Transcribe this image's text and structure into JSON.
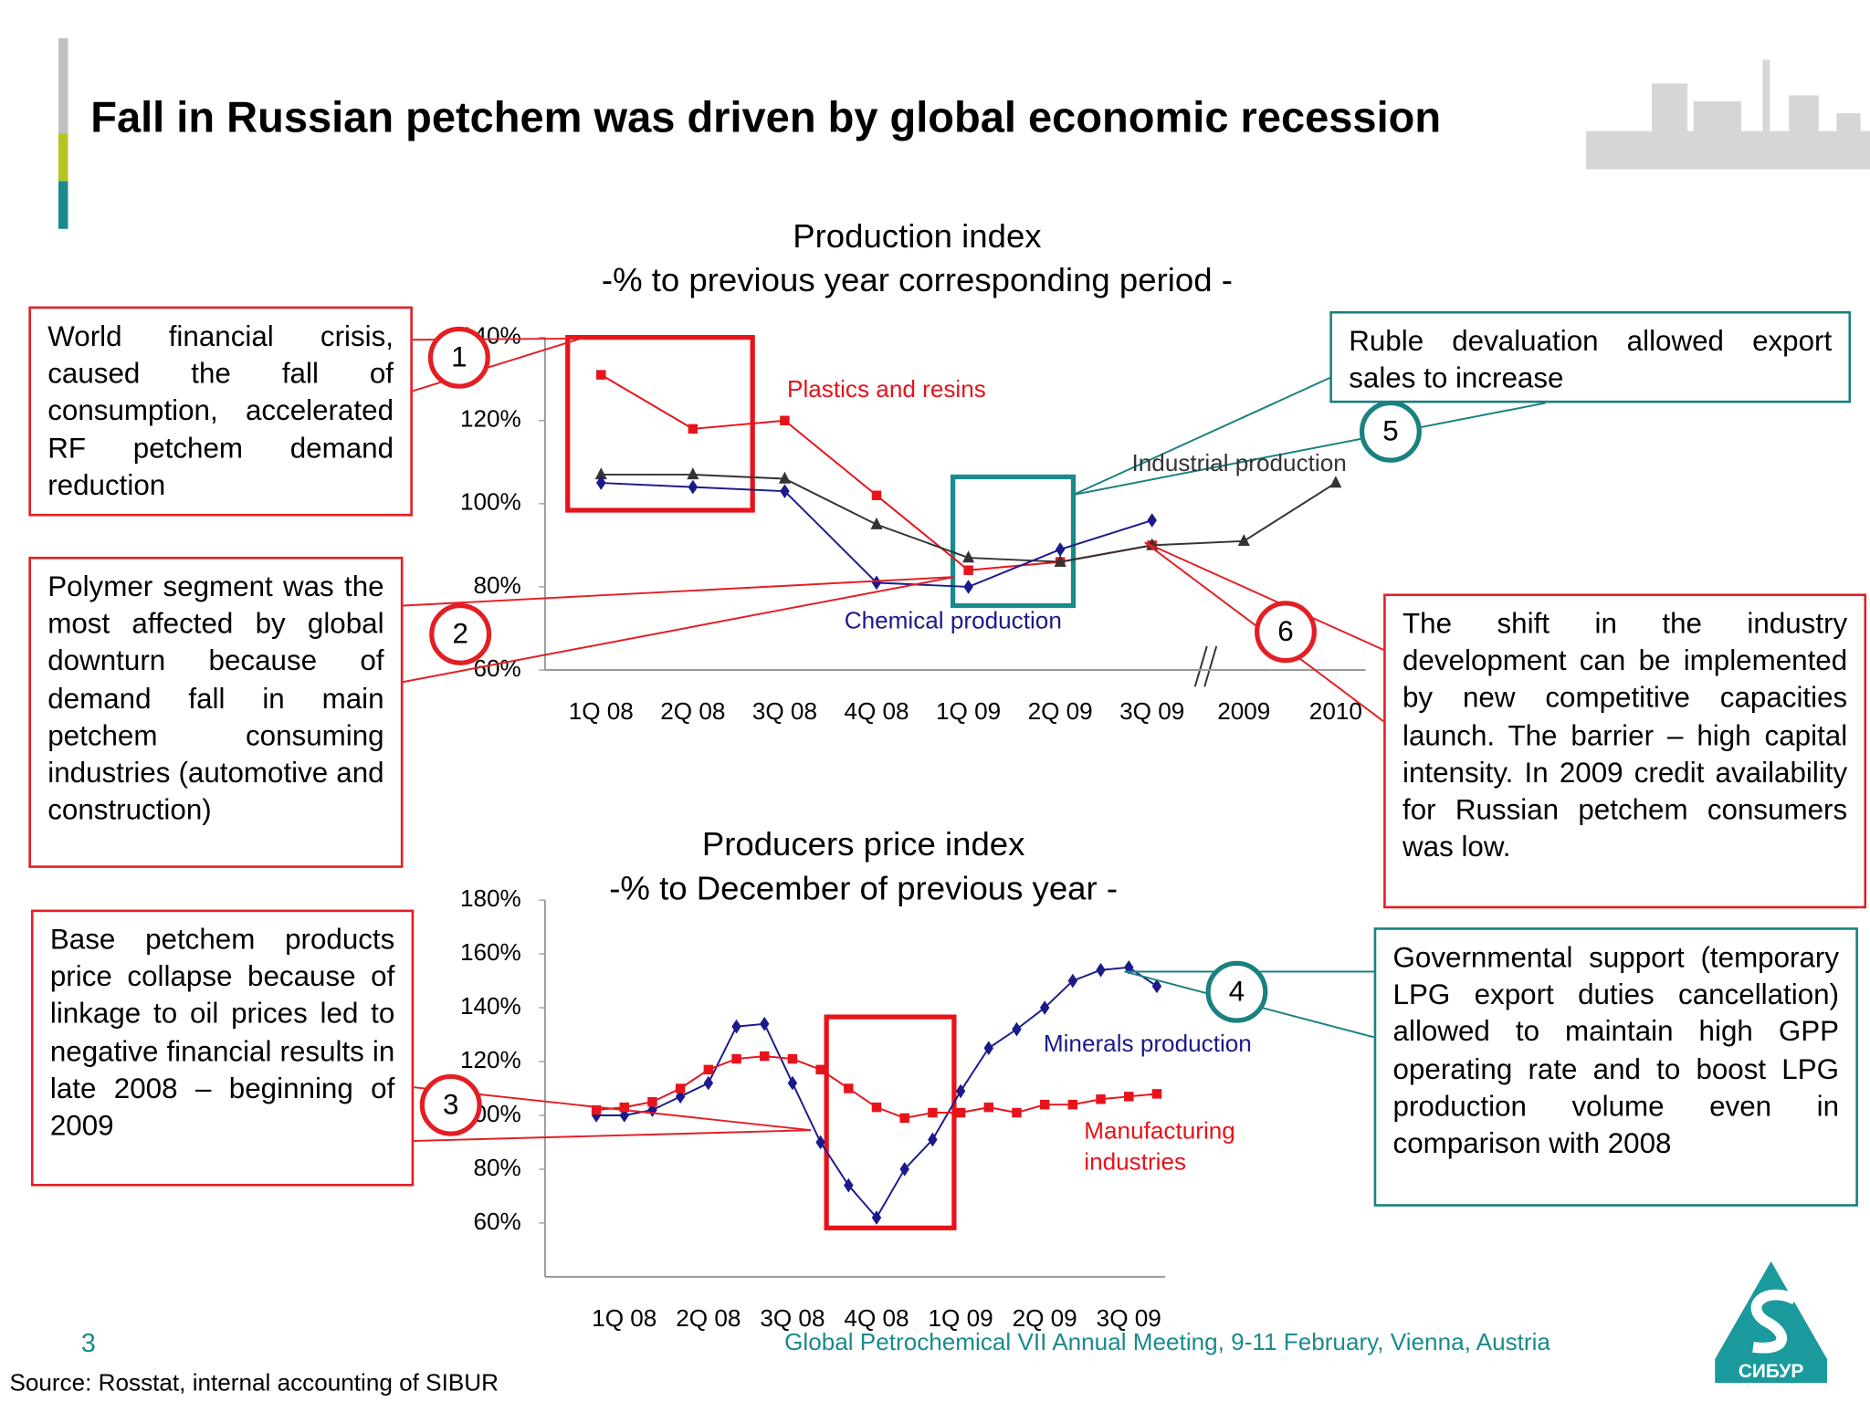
{
  "title": "Fall in Russian petchem was driven by global economic recession",
  "chart_data": [
    {
      "type": "line",
      "title": "Production index",
      "subtitle": "-% to previous year corresponding period -",
      "categories": [
        "1Q 08",
        "2Q 08",
        "3Q 08",
        "4Q 08",
        "1Q 09",
        "2Q 09",
        "3Q 09",
        "2009",
        "2010"
      ],
      "ylim": [
        60,
        140
      ],
      "yticks": [
        {
          "value": 60,
          "label": "60%"
        },
        {
          "value": 80,
          "label": "80%"
        },
        {
          "value": 100,
          "label": "100%"
        },
        {
          "value": 120,
          "label": "120%"
        },
        {
          "value": 140,
          "label": "140%"
        }
      ],
      "series": [
        {
          "name": "Plastics and resins",
          "color": "#e8121a",
          "marker": "square",
          "values": [
            131,
            118,
            120,
            102,
            84,
            86,
            90,
            null,
            null
          ]
        },
        {
          "name": "Industrial production",
          "color": "#333333",
          "marker": "triangle",
          "values": [
            107,
            107,
            106,
            95,
            87,
            86,
            90,
            91,
            105
          ]
        },
        {
          "name": "Chemical production",
          "color": "#1a1a8c",
          "marker": "diamond",
          "values": [
            105,
            104,
            103,
            81,
            80,
            89,
            96,
            null,
            null
          ]
        }
      ]
    },
    {
      "type": "line",
      "title": "Producers price index",
      "subtitle": "-% to December of previous year -",
      "categories": [
        null,
        "1Q 08",
        null,
        null,
        "2Q 08",
        null,
        null,
        "3Q 08",
        null,
        null,
        "4Q 08",
        null,
        null,
        "1Q 09",
        null,
        null,
        "2Q 09",
        null,
        null,
        "3Q 09",
        null
      ],
      "ylim": [
        40,
        180
      ],
      "yticks": [
        {
          "value": 60,
          "label": "60%"
        },
        {
          "value": 80,
          "label": "80%"
        },
        {
          "value": 100,
          "label": "100%"
        },
        {
          "value": 120,
          "label": "120%"
        },
        {
          "value": 140,
          "label": "140%"
        },
        {
          "value": 160,
          "label": "160%"
        },
        {
          "value": 180,
          "label": "180%"
        }
      ],
      "series": [
        {
          "name": "Minerals production",
          "color": "#1a1a8c",
          "marker": "diamond",
          "values": [
            100,
            100,
            102,
            107,
            112,
            133,
            134,
            112,
            90,
            74,
            62,
            80,
            91,
            109,
            125,
            132,
            140,
            150,
            154,
            155,
            148
          ]
        },
        {
          "name": "Manufacturing industries",
          "color": "#e8121a",
          "marker": "square",
          "values": [
            102,
            103,
            105,
            110,
            117,
            121,
            122,
            121,
            117,
            110,
            103,
            99,
            101,
            101,
            103,
            101,
            104,
            104,
            106,
            107,
            108
          ]
        }
      ]
    }
  ],
  "annotations": [
    {
      "number": 1,
      "text": "World financial crisis, caused the fall of consumption, accelerated RF petchem demand reduction"
    },
    {
      "number": 2,
      "text": "Polymer segment was the most affected by global downturn because of demand fall in main petchem consuming industries (automotive and construction)"
    },
    {
      "number": 3,
      "text": "Base petchem products price collapse because of linkage to oil prices led to negative financial results in late 2008 – beginning of 2009"
    },
    {
      "number": 4,
      "text": "Governmental support (temporary LPG export duties cancellation) allowed to maintain high GPP operating rate and to boost LPG production volume even in comparison with 2008"
    },
    {
      "number": 5,
      "text": "Ruble devaluation allowed export sales to increase"
    },
    {
      "number": 6,
      "text": "The shift in the industry development can be implemented by new competitive capacities launch. The barrier – high capital intensity. In 2009 credit availability for Russian petchem consumers was low."
    }
  ],
  "page_number": 3,
  "footer": "Global Petrochemical VII Annual Meeting, 9-11 February, Vienna, Austria",
  "source": "Source: Rosstat, internal accounting of SIBUR",
  "logo": "СИБУР"
}
